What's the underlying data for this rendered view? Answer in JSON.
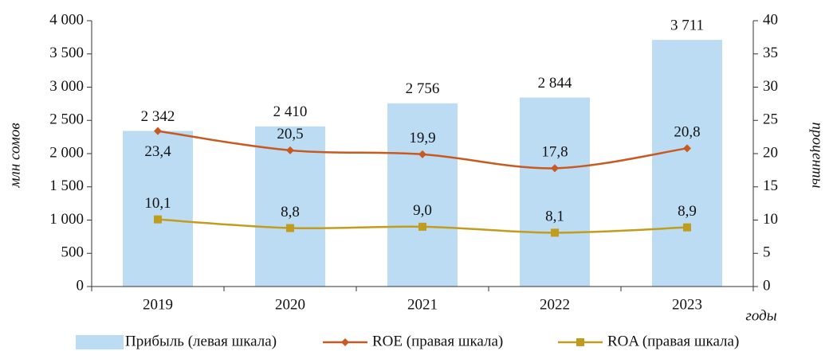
{
  "chart_data": {
    "type": "bar",
    "categories": [
      "2019",
      "2020",
      "2021",
      "2022",
      "2023"
    ],
    "series": [
      {
        "name": "Прибыль (левая шкала)",
        "type": "bar",
        "color": "#bcdcf4",
        "values": [
          2342,
          2410,
          2756,
          2844,
          3711
        ],
        "value_labels": [
          "2 342",
          "2 410",
          "2 756",
          "2 844",
          "3 711"
        ]
      },
      {
        "name": "ROE (правая шкала)",
        "type": "line",
        "axis": "y2",
        "marker": "diamond",
        "color": "#c8591f",
        "values": [
          23.4,
          20.5,
          19.9,
          17.8,
          20.8
        ],
        "value_labels": [
          "23,4",
          "20,5",
          "19,9",
          "17,8",
          "20,8"
        ]
      },
      {
        "name": "ROA (правая шкала)",
        "type": "line",
        "axis": "y2",
        "marker": "square",
        "color": "#c29c1c",
        "values": [
          10.1,
          8.8,
          9.0,
          8.1,
          8.9
        ],
        "value_labels": [
          "10,1",
          "8,8",
          "9,0",
          "8,1",
          "8,9"
        ]
      }
    ],
    "ylim": [
      0,
      4000
    ],
    "yticks": [
      0,
      500,
      {
        "value": 1000,
        "label": "1 000"
      },
      {
        "value": 1500,
        "label": "1 500"
      },
      {
        "value": 2000,
        "label": "2 000"
      },
      {
        "value": 2500,
        "label": "2 500"
      },
      {
        "value": 3000,
        "label": "3 000"
      },
      {
        "value": 3500,
        "label": "3 500"
      },
      {
        "value": 4000,
        "label": "4 000"
      }
    ],
    "y2lim": [
      0,
      40
    ],
    "y2ticks": [
      0,
      5,
      10,
      15,
      20,
      25,
      30,
      35,
      40
    ],
    "ylabel": "млн сомов",
    "y2label": "проценты",
    "xlabel": "годы",
    "grid": false
  }
}
